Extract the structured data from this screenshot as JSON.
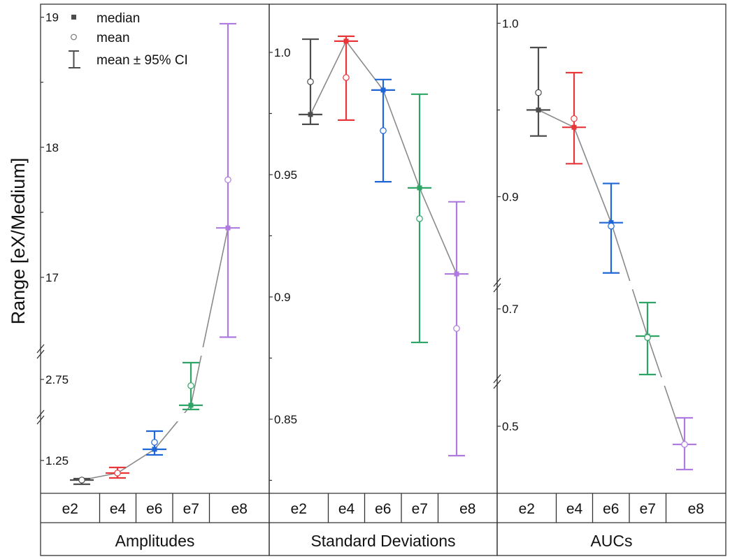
{
  "chart_data": {
    "type": "scatter",
    "ylabel": "Range [eX/Medium]",
    "legend": {
      "position": "top-left",
      "median_label": "median",
      "mean_label": "mean",
      "ci_label": "mean ± 95% CI"
    },
    "categories": [
      "e2",
      "e4",
      "e6",
      "e7",
      "e8"
    ],
    "colors": [
      "#4d4d4d",
      "#e8363a",
      "#1f66d6",
      "#2ea466",
      "#b07be0"
    ],
    "line_color": "#8a8a8a",
    "panels": [
      {
        "name": "Amplitudes",
        "segments": [
          [
            1.015,
            1.56
          ],
          [
            2.21,
            3.15
          ],
          [
            16.43,
            19.1
          ]
        ],
        "ticks": [
          {
            "value": 1.25,
            "label": "1.25"
          },
          {
            "value": 2.75,
            "label": "2.75"
          },
          {
            "value": 17,
            "label": "17"
          },
          {
            "value": 18,
            "label": "18"
          },
          {
            "value": 19,
            "label": "19"
          }
        ],
        "minor_ticks": [
          17.5,
          18.5
        ],
        "median": [
          1.11,
          1.16,
          1.33,
          2.38,
          17.38
        ],
        "mean": [
          1.11,
          1.16,
          1.38,
          2.66,
          17.75
        ],
        "ci_low": [
          1.08,
          1.125,
          1.29,
          2.32,
          16.54
        ],
        "ci_high": [
          1.12,
          1.2,
          1.46,
          2.99,
          18.95
        ]
      },
      {
        "name": "Standard Deviations",
        "segments": [
          [
            0.8197,
            1.0197
          ]
        ],
        "ticks": [
          {
            "value": 0.85,
            "label": "0.85"
          },
          {
            "value": 0.9,
            "label": "0.9"
          },
          {
            "value": 0.95,
            "label": "0.95"
          },
          {
            "value": 1.0,
            "label": "1.0"
          }
        ],
        "minor_ticks": [
          0.825,
          0.875,
          0.925,
          0.975
        ],
        "median": [
          0.9746,
          1.0046,
          0.9846,
          0.9446,
          0.9094
        ],
        "mean": [
          0.988,
          0.9897,
          0.968,
          0.932,
          0.8871
        ],
        "ci_low": [
          0.9706,
          0.9723,
          0.9471,
          0.8814,
          0.8351
        ],
        "ci_high": [
          1.0054,
          1.0066,
          0.9889,
          0.9829,
          0.9389
        ]
      },
      {
        "name": "AUCs",
        "segments": [
          [
            0.404,
            0.564
          ],
          [
            0.596,
            0.734
          ],
          [
            0.849,
            1.011
          ]
        ],
        "ticks": [
          {
            "value": 0.5,
            "label": "0.5"
          },
          {
            "value": 0.7,
            "label": "0.7"
          },
          {
            "value": 0.9,
            "label": "0.9"
          },
          {
            "value": 1.0,
            "label": "1.0"
          }
        ],
        "minor_ticks": [
          0.95
        ],
        "median": [
          0.95,
          0.94,
          0.885,
          0.661,
          0.474
        ],
        "mean": [
          0.96,
          0.945,
          0.883,
          0.659,
          0.474
        ],
        "ci_low": [
          0.935,
          0.919,
          0.856,
          0.606,
          0.438
        ],
        "ci_high": [
          0.986,
          0.9715,
          0.9076,
          0.709,
          0.512
        ]
      }
    ]
  }
}
